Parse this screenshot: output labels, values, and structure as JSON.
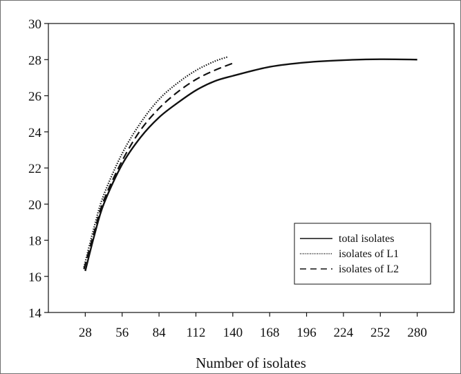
{
  "chart_data": {
    "type": "line",
    "xlabel": "Number of isolates",
    "ylabel": "",
    "title": "",
    "xlim": [
      0,
      308
    ],
    "ylim": [
      14,
      30
    ],
    "xticks": [
      "28",
      "56",
      "84",
      "112",
      "140",
      "168",
      "196",
      "224",
      "252",
      "280"
    ],
    "yticks": [
      "14",
      "16",
      "18",
      "20",
      "22",
      "24",
      "26",
      "28",
      "30"
    ],
    "grid": false,
    "legend_position": "bottom-right",
    "series": [
      {
        "name": "total isolates",
        "style": "solid",
        "color": "#111111",
        "points": [
          [
            28,
            16.3
          ],
          [
            35,
            18.3
          ],
          [
            42,
            20.0
          ],
          [
            56,
            22.2
          ],
          [
            70,
            23.7
          ],
          [
            84,
            24.8
          ],
          [
            98,
            25.6
          ],
          [
            112,
            26.3
          ],
          [
            126,
            26.8
          ],
          [
            140,
            27.1
          ],
          [
            168,
            27.6
          ],
          [
            196,
            27.85
          ],
          [
            224,
            27.97
          ],
          [
            252,
            28.02
          ],
          [
            280,
            28.0
          ]
        ]
      },
      {
        "name": "isolates of L1",
        "style": "dotted",
        "color": "#111111",
        "points": [
          [
            27,
            16.5
          ],
          [
            35,
            18.8
          ],
          [
            42,
            20.5
          ],
          [
            56,
            22.8
          ],
          [
            70,
            24.5
          ],
          [
            84,
            25.8
          ],
          [
            98,
            26.7
          ],
          [
            112,
            27.4
          ],
          [
            126,
            27.9
          ],
          [
            136,
            28.15
          ]
        ]
      },
      {
        "name": "isolates of L2",
        "style": "dashed",
        "color": "#111111",
        "points": [
          [
            27,
            16.4
          ],
          [
            35,
            18.5
          ],
          [
            42,
            20.2
          ],
          [
            56,
            22.4
          ],
          [
            70,
            24.1
          ],
          [
            84,
            25.3
          ],
          [
            98,
            26.2
          ],
          [
            112,
            26.9
          ],
          [
            126,
            27.4
          ],
          [
            140,
            27.8
          ]
        ]
      }
    ]
  }
}
